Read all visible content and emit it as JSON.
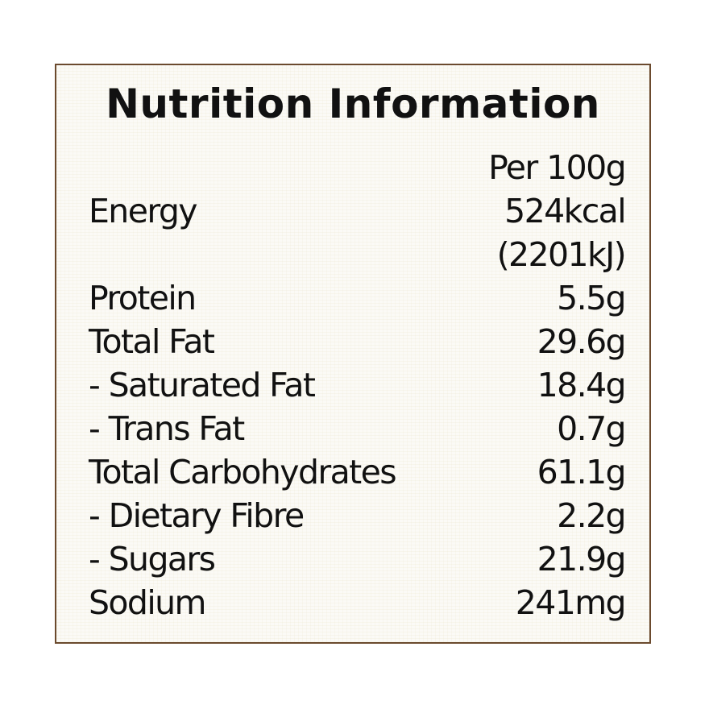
{
  "title": "Nutrition Information",
  "per_header": "Per 100g",
  "nutrients": [
    {
      "name": "Energy",
      "value": "524kcal"
    },
    {
      "name": "",
      "value": "(2201kJ)"
    },
    {
      "name": "Protein",
      "value": "5.5g"
    },
    {
      "name": "Total Fat",
      "value": "29.6g"
    },
    {
      "name": "- Saturated Fat",
      "value": "18.4g"
    },
    {
      "name": "- Trans Fat",
      "value": "0.7g"
    },
    {
      "name": "Total Carbohydrates",
      "value": "61.1g"
    },
    {
      "name": "- Dietary Fibre",
      "value": "2.2g"
    },
    {
      "name": "- Sugars",
      "value": "21.9g"
    },
    {
      "name": "Sodium",
      "value": "241mg"
    }
  ],
  "colors": {
    "border": "#6b4a2e",
    "background": "#fbfaf6",
    "text": "#111111"
  }
}
